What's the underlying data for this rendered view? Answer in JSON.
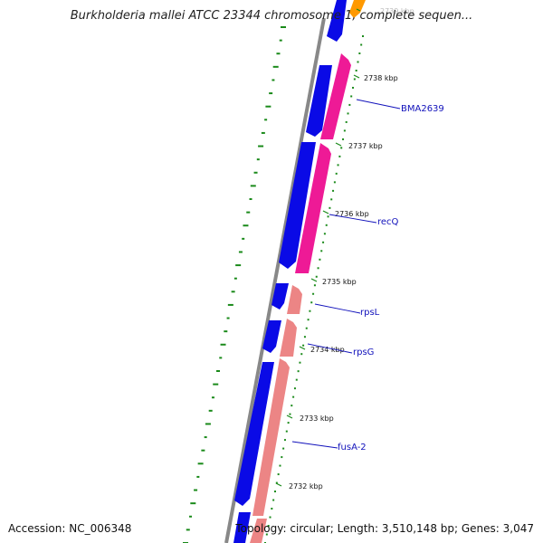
{
  "title": "Burkholderia mallei ATCC 23344 chromosome 1, complete sequen...",
  "accession": "Accession: NC_006348",
  "topology": "Topology: circular; Length: 3,510,148 bp; Genes: 3,047",
  "scale_labels": [
    "2739 kbp",
    "2738 kbp",
    "2737 kbp",
    "2736 kbp",
    "2735 kbp",
    "2734 kbp",
    "2733 kbp",
    "2732 kbp"
  ],
  "gene_labels": [
    "BMA2639",
    "recQ",
    "rpsL",
    "rpsG",
    "fusA-2"
  ],
  "colors": {
    "backbone": "#888888",
    "cds_blue": "#0a0ae6",
    "gene_magenta": "#ee1a96",
    "gene_salmon": "#ec8585",
    "gene_orange": "#ff9900",
    "gc_ticks": "#1a8a1a",
    "label_line": "#1111bb"
  }
}
